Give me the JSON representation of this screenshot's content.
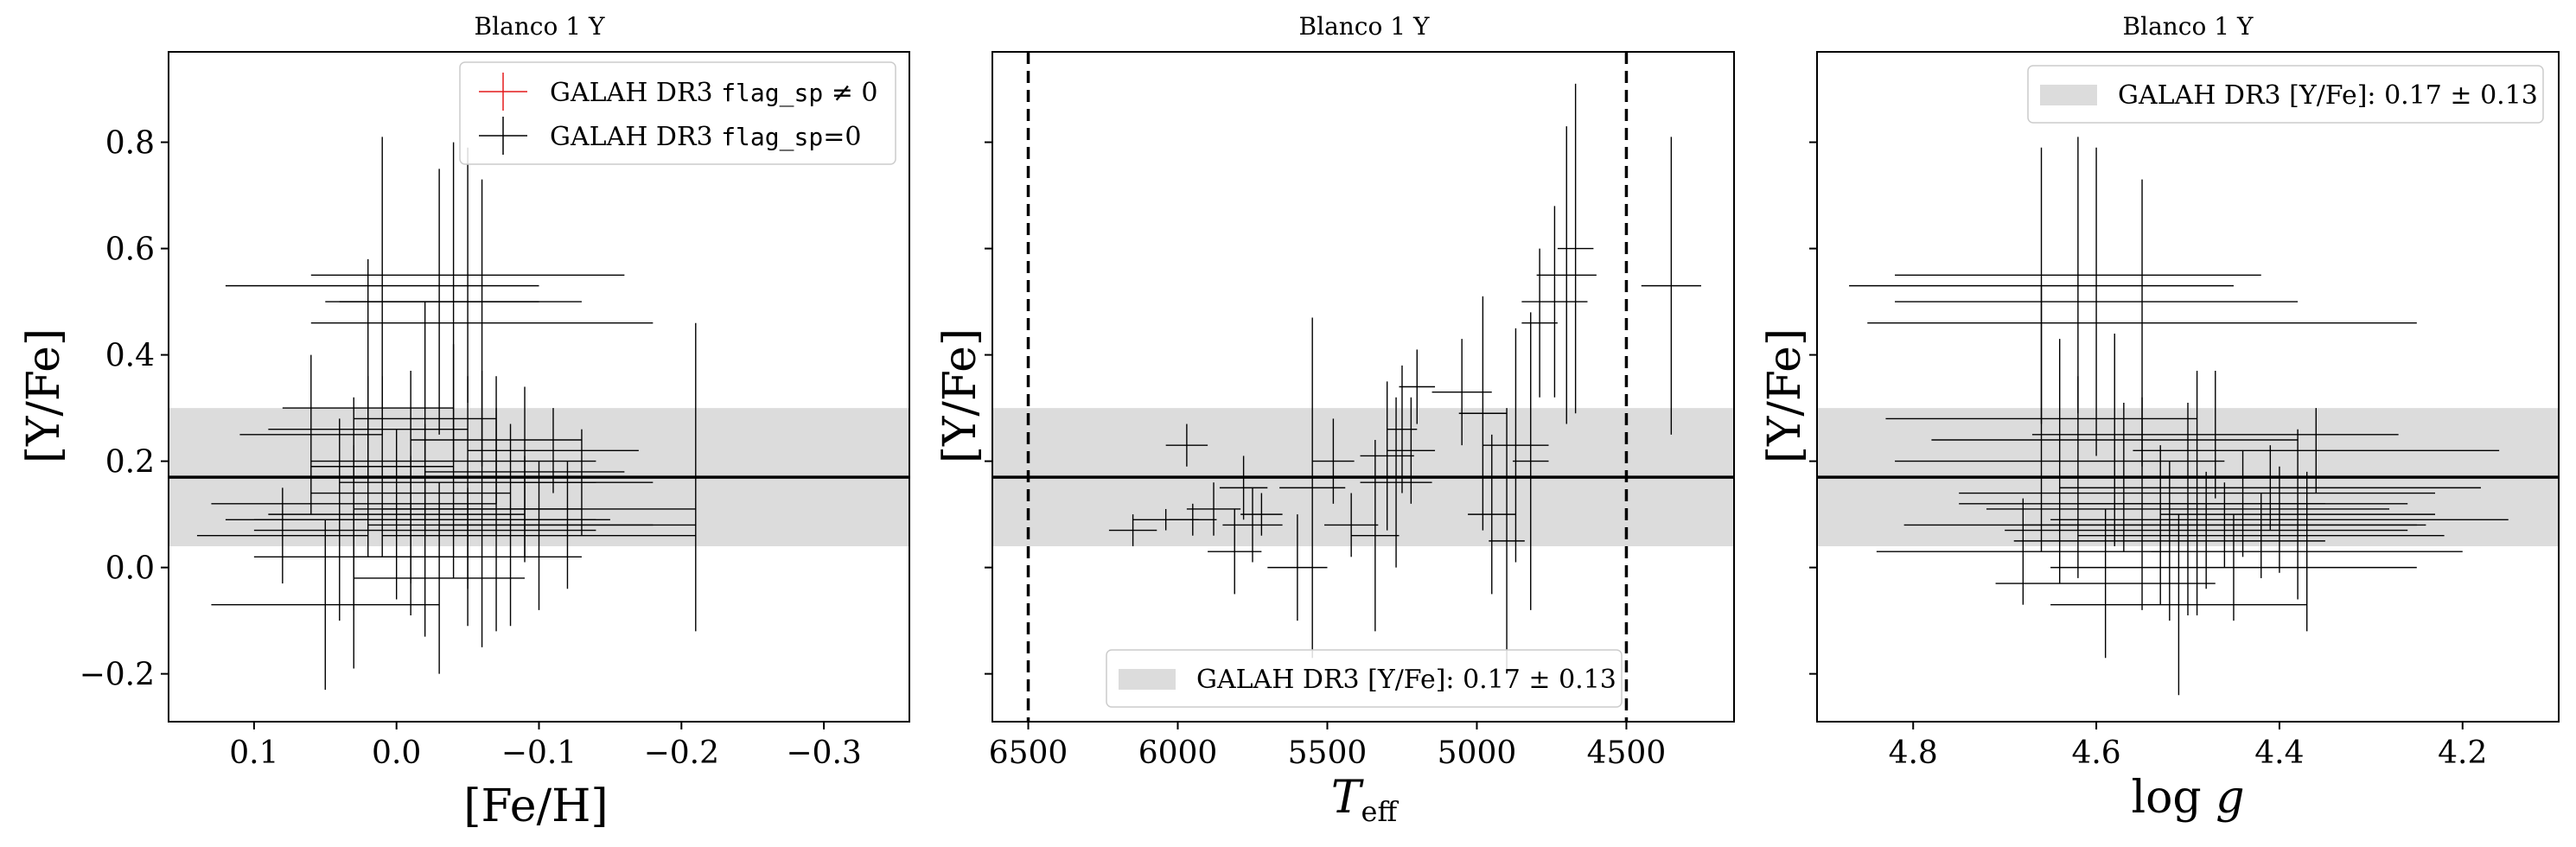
{
  "colors": {
    "band": "#dcdcdc",
    "errorbar": "#000000",
    "flagged": "#e41a1c",
    "axis": "#000000"
  },
  "band_text": "GALAH DR3 [Y/Fe]: 0.17 ± 0.13",
  "chart_data": [
    {
      "type": "scatter",
      "title": "Blanco 1 Y",
      "xlabel": "[Fe/H]",
      "ylabel": "[Y/Fe]",
      "xlim": [
        0.16,
        -0.36
      ],
      "ylim": [
        -0.29,
        0.97
      ],
      "xticks": [
        0.1,
        0.0,
        -0.1,
        -0.2,
        -0.3
      ],
      "xtick_labels": [
        "0.1",
        "0.0",
        "−0.1",
        "−0.2",
        "−0.3"
      ],
      "yticks": [
        -0.2,
        0.0,
        0.2,
        0.4,
        0.6,
        0.8
      ],
      "ytick_labels": [
        "−0.2",
        "0.0",
        "0.2",
        "0.4",
        "0.6",
        "0.8"
      ],
      "ytick_labels_visible": true,
      "band": {
        "center": 0.17,
        "halfwidth": 0.13
      },
      "hline": 0.17,
      "vlines": [],
      "legend": {
        "position": "upper right",
        "entries": [
          {
            "prefix": "GALAH DR3 ",
            "code": "flag_sp",
            "suffix": " ≠ 0",
            "color": "#e41a1c"
          },
          {
            "prefix": "GALAH DR3 ",
            "code": "flag_sp",
            "suffix": "=0",
            "color": "#000000"
          }
        ]
      },
      "series": [
        {
          "name": "GALAH DR3 flag_sp=0",
          "points": [
            {
              "x": 0.05,
              "y": -0.07,
              "xe": 0.08,
              "ye": 0.16
            },
            {
              "x": 0.04,
              "y": 0.09,
              "xe": 0.06,
              "ye": 0.19
            },
            {
              "x": 0.03,
              "y": 0.02,
              "xe": 0.07,
              "ye": 0.21
            },
            {
              "x": 0.03,
              "y": 0.12,
              "xe": 0.1,
              "ye": 0.2
            },
            {
              "x": 0.02,
              "y": 0.3,
              "xe": 0.06,
              "ye": 0.28
            },
            {
              "x": 0.01,
              "y": 0.19,
              "xe": 0.05,
              "ye": 0.17
            },
            {
              "x": 0.0,
              "y": 0.1,
              "xe": 0.09,
              "ye": 0.16
            },
            {
              "x": 0.01,
              "y": 0.53,
              "xe": 0.11,
              "ye": 0.28
            },
            {
              "x": -0.01,
              "y": 0.14,
              "xe": 0.07,
              "ye": 0.23
            },
            {
              "x": -0.02,
              "y": 0.28,
              "xe": 0.05,
              "ye": 0.22
            },
            {
              "x": -0.02,
              "y": 0.07,
              "xe": 0.12,
              "ye": 0.2
            },
            {
              "x": -0.03,
              "y": 0.5,
              "xe": 0.07,
              "ye": 0.25
            },
            {
              "x": -0.03,
              "y": -0.02,
              "xe": 0.06,
              "ye": 0.18
            },
            {
              "x": -0.04,
              "y": 0.2,
              "xe": 0.1,
              "ye": 0.22
            },
            {
              "x": -0.04,
              "y": 0.5,
              "xe": 0.09,
              "ye": 0.3
            },
            {
              "x": -0.05,
              "y": 0.55,
              "xe": 0.11,
              "ye": 0.24
            },
            {
              "x": -0.05,
              "y": 0.16,
              "xe": 0.09,
              "ye": 0.2
            },
            {
              "x": -0.06,
              "y": 0.11,
              "xe": 0.07,
              "ye": 0.26
            },
            {
              "x": -0.06,
              "y": 0.46,
              "xe": 0.12,
              "ye": 0.27
            },
            {
              "x": -0.07,
              "y": 0.09,
              "xe": 0.08,
              "ye": 0.21
            },
            {
              "x": -0.07,
              "y": 0.24,
              "xe": 0.06,
              "ye": 0.12
            },
            {
              "x": -0.08,
              "y": 0.08,
              "xe": 0.1,
              "ye": 0.19
            },
            {
              "x": -0.09,
              "y": 0.18,
              "xe": 0.07,
              "ye": 0.16
            },
            {
              "x": -0.09,
              "y": 0.11,
              "xe": 0.12,
              "ye": 0.1
            },
            {
              "x": -0.1,
              "y": 0.06,
              "xe": 0.11,
              "ye": 0.14
            },
            {
              "x": -0.11,
              "y": 0.22,
              "xe": 0.06,
              "ye": 0.08
            },
            {
              "x": -0.12,
              "y": 0.08,
              "xe": 0.09,
              "ye": 0.12
            },
            {
              "x": -0.13,
              "y": 0.16,
              "xe": 0.05,
              "ye": 0.1
            },
            {
              "x": -0.21,
              "y": 0.17,
              "xe": 0.04,
              "ye": 0.29
            },
            {
              "x": 0.06,
              "y": 0.25,
              "xe": 0.05,
              "ye": 0.15
            },
            {
              "x": 0.08,
              "y": 0.06,
              "xe": 0.06,
              "ye": 0.09
            },
            {
              "x": -0.01,
              "y": 0.09,
              "xe": 0.13,
              "ye": 0.12
            },
            {
              "x": -0.05,
              "y": 0.02,
              "xe": 0.08,
              "ye": 0.13
            },
            {
              "x": 0.02,
              "y": 0.26,
              "xe": 0.07,
              "ye": 0.1
            }
          ]
        }
      ]
    },
    {
      "type": "scatter",
      "title": "Blanco 1 Y",
      "xlabel": "T_eff",
      "ylabel": "[Y/Fe]",
      "xlim": [
        6620,
        4140
      ],
      "ylim": [
        -0.29,
        0.97
      ],
      "xticks": [
        6500,
        6000,
        5500,
        5000,
        4500
      ],
      "xtick_labels": [
        "6500",
        "6000",
        "5500",
        "5000",
        "4500"
      ],
      "yticks": [
        -0.2,
        0.0,
        0.2,
        0.4,
        0.6,
        0.8
      ],
      "ytick_labels": [],
      "ytick_labels_visible": false,
      "band": {
        "center": 0.17,
        "halfwidth": 0.13
      },
      "hline": 0.17,
      "vlines": [
        6500,
        4500
      ],
      "legend": {
        "position": "lower center",
        "band_text": "GALAH DR3 [Y/Fe]: 0.17 ± 0.13"
      },
      "series": [
        {
          "name": "GALAH DR3 flag_sp=0",
          "points": [
            {
              "x": 6150,
              "y": 0.07,
              "xe": 80,
              "ye": 0.03
            },
            {
              "x": 6040,
              "y": 0.09,
              "xe": 110,
              "ye": 0.02
            },
            {
              "x": 5970,
              "y": 0.23,
              "xe": 70,
              "ye": 0.04
            },
            {
              "x": 5950,
              "y": 0.09,
              "xe": 80,
              "ye": 0.03
            },
            {
              "x": 5880,
              "y": 0.11,
              "xe": 90,
              "ye": 0.05
            },
            {
              "x": 5810,
              "y": 0.03,
              "xe": 90,
              "ye": 0.08
            },
            {
              "x": 5780,
              "y": 0.15,
              "xe": 80,
              "ye": 0.06
            },
            {
              "x": 5750,
              "y": 0.08,
              "xe": 100,
              "ye": 0.07
            },
            {
              "x": 5720,
              "y": 0.1,
              "xe": 70,
              "ye": 0.04
            },
            {
              "x": 5600,
              "y": 0.0,
              "xe": 100,
              "ye": 0.1
            },
            {
              "x": 5550,
              "y": 0.15,
              "xe": 110,
              "ye": 0.32
            },
            {
              "x": 5480,
              "y": 0.2,
              "xe": 70,
              "ye": 0.08
            },
            {
              "x": 5420,
              "y": 0.08,
              "xe": 90,
              "ye": 0.06
            },
            {
              "x": 5340,
              "y": 0.06,
              "xe": 80,
              "ye": 0.18
            },
            {
              "x": 5300,
              "y": 0.21,
              "xe": 90,
              "ye": 0.14
            },
            {
              "x": 5270,
              "y": 0.16,
              "xe": 120,
              "ye": 0.16
            },
            {
              "x": 5250,
              "y": 0.26,
              "xe": 50,
              "ye": 0.12
            },
            {
              "x": 5220,
              "y": 0.22,
              "xe": 80,
              "ye": 0.1
            },
            {
              "x": 5200,
              "y": 0.34,
              "xe": 60,
              "ye": 0.07
            },
            {
              "x": 5050,
              "y": 0.33,
              "xe": 100,
              "ye": 0.1
            },
            {
              "x": 4980,
              "y": 0.29,
              "xe": 80,
              "ye": 0.22
            },
            {
              "x": 4950,
              "y": 0.1,
              "xe": 80,
              "ye": 0.15
            },
            {
              "x": 4900,
              "y": 0.05,
              "xe": 60,
              "ye": 0.25
            },
            {
              "x": 4870,
              "y": 0.23,
              "xe": 110,
              "ye": 0.22
            },
            {
              "x": 4820,
              "y": 0.2,
              "xe": 60,
              "ye": 0.28
            },
            {
              "x": 4790,
              "y": 0.46,
              "xe": 60,
              "ye": 0.14
            },
            {
              "x": 4740,
              "y": 0.5,
              "xe": 110,
              "ye": 0.18
            },
            {
              "x": 4700,
              "y": 0.55,
              "xe": 100,
              "ye": 0.28
            },
            {
              "x": 4670,
              "y": 0.6,
              "xe": 60,
              "ye": 0.31
            },
            {
              "x": 4350,
              "y": 0.53,
              "xe": 100,
              "ye": 0.28
            }
          ]
        }
      ]
    },
    {
      "type": "scatter",
      "title": "Blanco 1 Y",
      "xlabel": "log g",
      "ylabel": "[Y/Fe]",
      "xlim": [
        4.905,
        4.095
      ],
      "ylim": [
        -0.29,
        0.97
      ],
      "xticks": [
        4.8,
        4.6,
        4.4,
        4.2
      ],
      "xtick_labels": [
        "4.8",
        "4.6",
        "4.4",
        "4.2"
      ],
      "yticks": [
        -0.2,
        0.0,
        0.2,
        0.4,
        0.6,
        0.8
      ],
      "ytick_labels": [],
      "ytick_labels_visible": false,
      "band": {
        "center": 0.17,
        "halfwidth": 0.13
      },
      "hline": 0.17,
      "vlines": [],
      "legend": {
        "position": "upper right",
        "band_text": "GALAH DR3 [Y/Fe]: 0.17 ± 0.13"
      },
      "series": [
        {
          "name": "GALAH DR3 flag_sp=0",
          "points": [
            {
              "x": 4.66,
              "y": 0.53,
              "xe": 0.21,
              "ye": 0.26
            },
            {
              "x": 4.62,
              "y": 0.55,
              "xe": 0.2,
              "ye": 0.26
            },
            {
              "x": 4.6,
              "y": 0.5,
              "xe": 0.22,
              "ye": 0.29
            },
            {
              "x": 4.55,
              "y": 0.46,
              "xe": 0.3,
              "ye": 0.27
            },
            {
              "x": 4.66,
              "y": 0.28,
              "xe": 0.17,
              "ye": 0.25
            },
            {
              "x": 4.64,
              "y": 0.2,
              "xe": 0.18,
              "ye": 0.23
            },
            {
              "x": 4.62,
              "y": 0.17,
              "xe": 0.25,
              "ye": 0.19
            },
            {
              "x": 4.58,
              "y": 0.24,
              "xe": 0.2,
              "ye": 0.2
            },
            {
              "x": 4.57,
              "y": 0.17,
              "xe": 0.23,
              "ye": 0.14
            },
            {
              "x": 4.55,
              "y": 0.12,
              "xe": 0.2,
              "ye": 0.2
            },
            {
              "x": 4.53,
              "y": 0.08,
              "xe": 0.28,
              "ye": 0.15
            },
            {
              "x": 4.52,
              "y": 0.05,
              "xe": 0.17,
              "ye": 0.15
            },
            {
              "x": 4.5,
              "y": 0.11,
              "xe": 0.22,
              "ye": 0.2
            },
            {
              "x": 4.49,
              "y": 0.14,
              "xe": 0.26,
              "ye": 0.23
            },
            {
              "x": 4.48,
              "y": 0.07,
              "xe": 0.22,
              "ye": 0.11
            },
            {
              "x": 4.47,
              "y": 0.25,
              "xe": 0.2,
              "ye": 0.12
            },
            {
              "x": 4.46,
              "y": 0.08,
              "xe": 0.22,
              "ye": 0.08
            },
            {
              "x": 4.44,
              "y": 0.12,
              "xe": 0.18,
              "ye": 0.1
            },
            {
              "x": 4.42,
              "y": 0.06,
              "xe": 0.2,
              "ye": 0.08
            },
            {
              "x": 4.4,
              "y": 0.09,
              "xe": 0.25,
              "ye": 0.1
            },
            {
              "x": 4.38,
              "y": 0.1,
              "xe": 0.15,
              "ye": 0.16
            },
            {
              "x": 4.37,
              "y": 0.03,
              "xe": 0.17,
              "ye": 0.15
            },
            {
              "x": 4.36,
              "y": 0.22,
              "xe": 0.2,
              "ye": 0.08
            },
            {
              "x": 4.51,
              "y": -0.07,
              "xe": 0.14,
              "ye": 0.17
            },
            {
              "x": 4.59,
              "y": -0.03,
              "xe": 0.12,
              "ye": 0.14
            },
            {
              "x": 4.45,
              "y": 0.0,
              "xe": 0.2,
              "ye": 0.1
            },
            {
              "x": 4.68,
              "y": 0.03,
              "xe": 0.16,
              "ye": 0.1
            },
            {
              "x": 4.41,
              "y": 0.15,
              "xe": 0.23,
              "ye": 0.08
            }
          ]
        }
      ]
    }
  ]
}
